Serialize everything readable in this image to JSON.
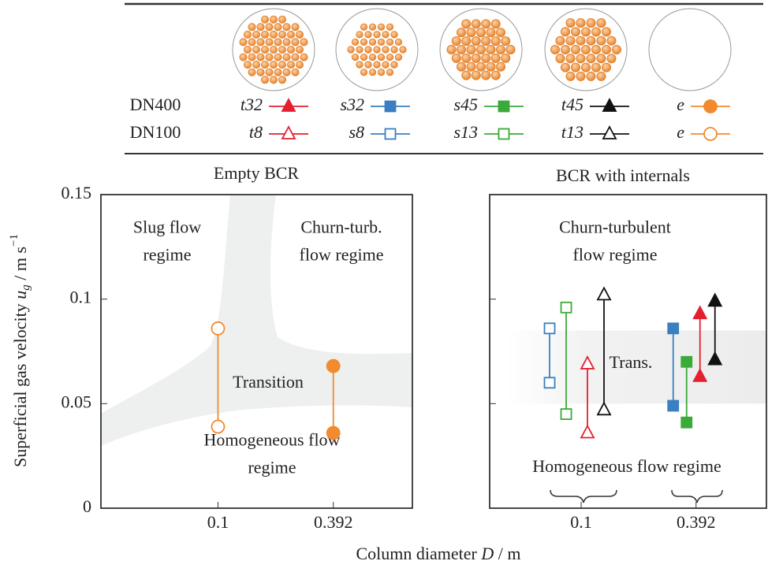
{
  "legend": {
    "rows": [
      "DN400",
      "DN100"
    ]
  },
  "xlabel": {
    "text": "Column diameter ",
    "symbol": "D",
    "unit": " / m"
  },
  "ylabel": {
    "text": "Superficial gas velocity ",
    "symbol": "u",
    "subscript": "g",
    "unit": " / m s",
    "exponent": "−1"
  },
  "chart_data": [
    {
      "type": "range",
      "title": "Empty BCR",
      "xscale": "log",
      "xlim": [
        0.025,
        1
      ],
      "xticks": [
        0.1,
        0.392
      ],
      "ylim": [
        0,
        0.15
      ],
      "yticks": [
        0,
        0.05,
        0.1,
        0.15
      ],
      "ytick_labels": true,
      "annotations": [
        {
          "lines": [
            "Slug flow",
            "regime"
          ]
        },
        {
          "lines": [
            "Churn-turb.",
            "flow regime"
          ]
        },
        {
          "lines": [
            "Transition"
          ]
        },
        {
          "lines": [
            "Homogeneous flow",
            "regime"
          ]
        }
      ],
      "series": [
        {
          "name": "e",
          "color": "#f28a30",
          "marker": "circle",
          "filled": true,
          "x": 0.392,
          "values": [
            0.068,
            0.036
          ]
        },
        {
          "name": "e",
          "color": "#f28a30",
          "marker": "circle",
          "filled": false,
          "x": 0.1,
          "values": [
            0.086,
            0.039
          ]
        }
      ]
    },
    {
      "type": "range",
      "title": "BCR with internals",
      "xscale": "log",
      "xlim": [
        0.0337,
        0.905
      ],
      "xticks": [
        0.1,
        0.392
      ],
      "ylim": [
        0,
        0.15
      ],
      "yticks": [
        0,
        0.05,
        0.1,
        0.15
      ],
      "ytick_labels": false,
      "band": [
        0.05,
        0.085
      ],
      "annotations": [
        {
          "lines": [
            "Churn-turbulent",
            "flow regime"
          ]
        },
        {
          "lines": [
            "Trans."
          ]
        },
        {
          "lines": [
            "Homogeneous flow regime"
          ]
        }
      ],
      "series": [
        {
          "name": "t32",
          "color": "#e4202e",
          "marker": "triangle",
          "filled": true,
          "x": 0.392,
          "values": [
            0.093,
            0.063
          ]
        },
        {
          "name": "s32",
          "color": "#3a7fc1",
          "marker": "square",
          "filled": true,
          "x": 0.392,
          "values": [
            0.086,
            0.049
          ]
        },
        {
          "name": "s45",
          "color": "#3aaa3a",
          "marker": "square",
          "filled": true,
          "x": 0.392,
          "values": [
            0.07,
            0.041
          ]
        },
        {
          "name": "t45",
          "color": "#111111",
          "marker": "triangle",
          "filled": true,
          "x": 0.392,
          "values": [
            0.099,
            0.071
          ]
        },
        {
          "name": "t8",
          "color": "#e4202e",
          "marker": "triangle",
          "filled": false,
          "x": 0.1,
          "values": [
            0.069,
            0.036
          ]
        },
        {
          "name": "s8",
          "color": "#3a7fc1",
          "marker": "square",
          "filled": false,
          "x": 0.1,
          "values": [
            0.086,
            0.06
          ]
        },
        {
          "name": "s13",
          "color": "#3aaa3a",
          "marker": "square",
          "filled": false,
          "x": 0.1,
          "values": [
            0.096,
            0.045
          ]
        },
        {
          "name": "t13",
          "color": "#111111",
          "marker": "triangle",
          "filled": false,
          "x": 0.1,
          "values": [
            0.102,
            0.047
          ]
        }
      ]
    }
  ]
}
